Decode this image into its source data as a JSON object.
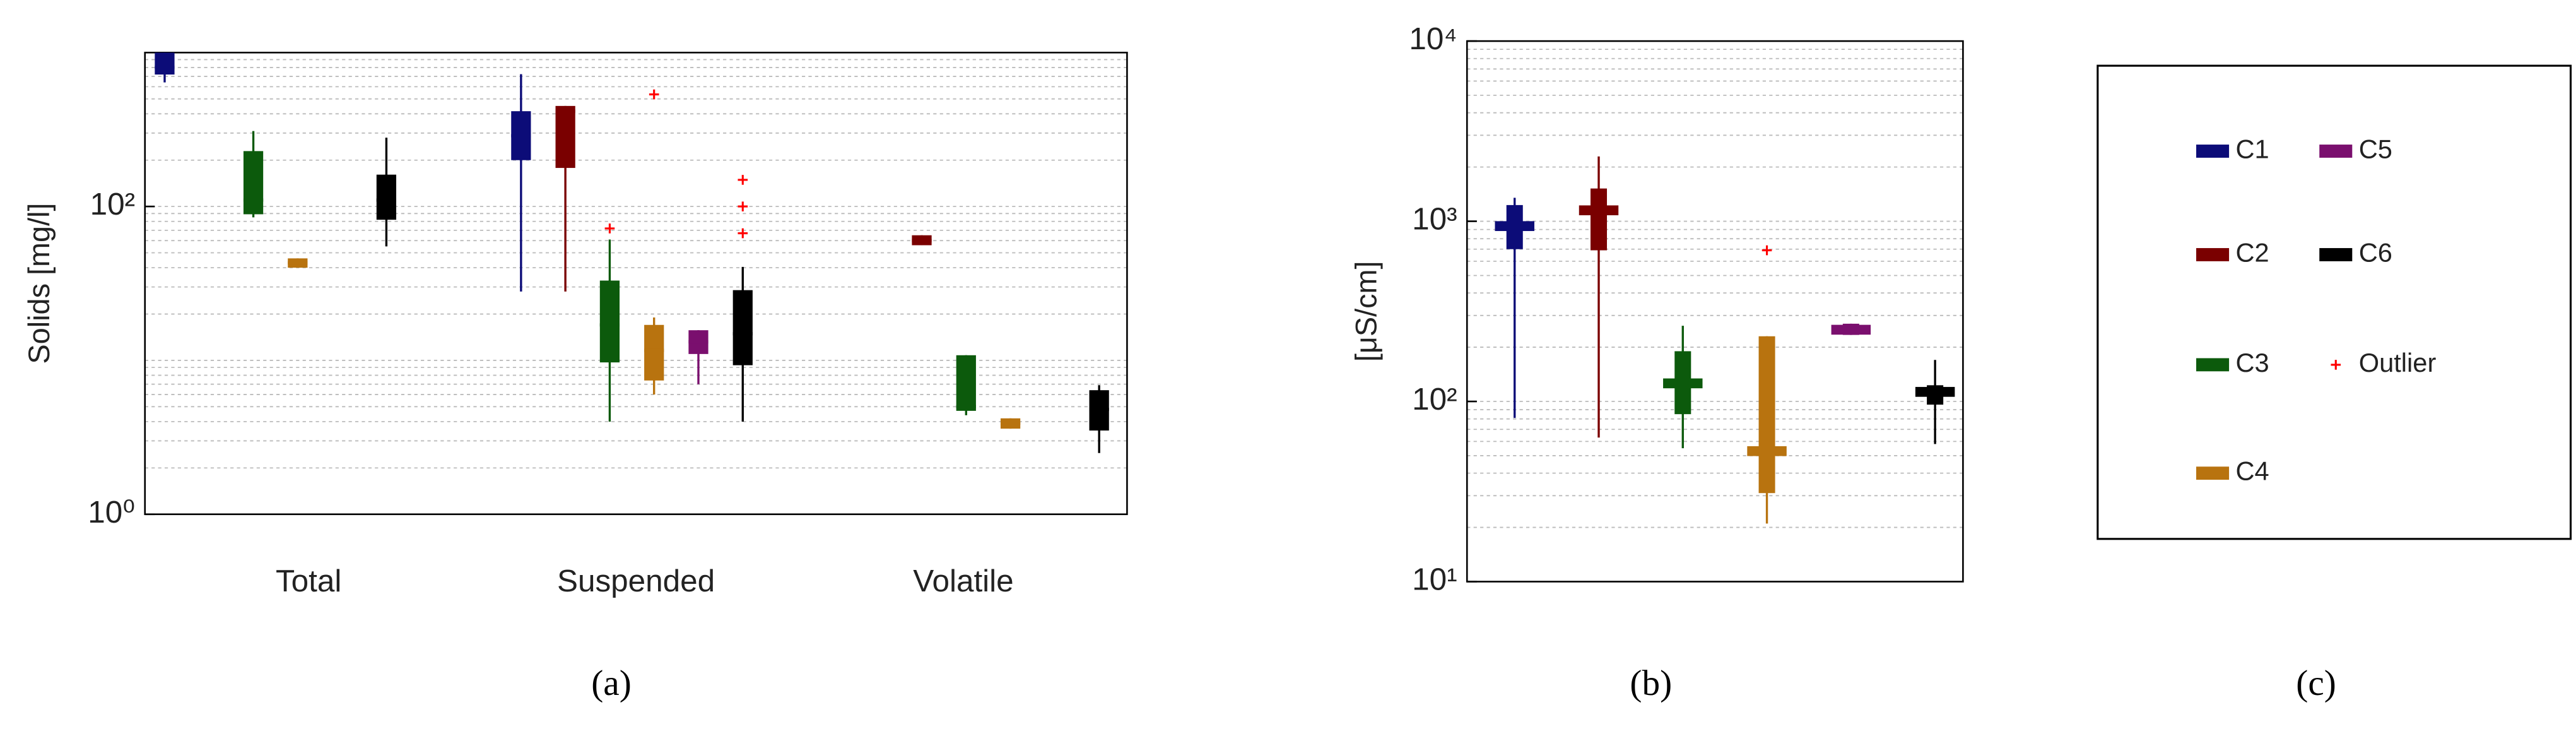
{
  "chart_data": [
    {
      "type": "box",
      "ylabel": "Solids [mg/l]",
      "log_scale": true,
      "grid": true,
      "caption": "(a)",
      "categories": [
        "Total",
        "Suspended",
        "Volatile"
      ],
      "ylim": [
        1,
        1000
      ],
      "yticks": [
        {
          "value": 1,
          "label": "10⁰"
        },
        {
          "value": 100,
          "label": "10²"
        }
      ],
      "outlier_color": "#ff0000",
      "outlier_label": "Outlier",
      "series": [
        {
          "name": "C1",
          "color": "#0c0c78",
          "min": [
            640,
            28,
            null
          ],
          "q1": [
            720,
            200,
            null
          ],
          "median": [
            800,
            288,
            null
          ],
          "q3": [
            1000,
            416,
            null
          ],
          "max": [
            1000,
            724,
            null
          ],
          "outliers": [
            [],
            [],
            []
          ]
        },
        {
          "name": "C2",
          "color": "#7a0000",
          "min": [
            null,
            28,
            56
          ],
          "q1": [
            null,
            178,
            56
          ],
          "median": [
            null,
            416,
            60
          ],
          "q3": [
            null,
            450,
            65
          ],
          "max": [
            null,
            450,
            65
          ],
          "outliers": [
            [],
            [],
            []
          ]
        },
        {
          "name": "C3",
          "color": "#0c5a0c",
          "min": [
            85,
            4,
            4.4
          ],
          "q1": [
            89,
            9.7,
            4.7
          ],
          "median": [
            110,
            17,
            5
          ],
          "q3": [
            229,
            33,
            10.8
          ],
          "max": [
            309,
            61,
            10.8
          ],
          "outliers": [
            [],
            [
              72
            ],
            []
          ]
        },
        {
          "name": "C4",
          "color": "#b8730f",
          "min": [
            40,
            6,
            3.6
          ],
          "q1": [
            40,
            7.4,
            3.6
          ],
          "median": [
            43,
            11.6,
            3.9
          ],
          "q3": [
            46,
            17,
            4.2
          ],
          "max": [
            46,
            19,
            4.2
          ],
          "outliers": [
            [],
            [
              535
            ],
            []
          ]
        },
        {
          "name": "C5",
          "color": "#7a0f6e",
          "min": [
            null,
            7,
            null
          ],
          "q1": [
            null,
            11,
            null
          ],
          "median": [
            null,
            13.2,
            null
          ],
          "q3": [
            null,
            15.7,
            null
          ],
          "max": [
            null,
            15.7,
            null
          ],
          "outliers": [
            [],
            [],
            []
          ]
        },
        {
          "name": "C6",
          "color": "#000000",
          "min": [
            55,
            4,
            2.5
          ],
          "q1": [
            82,
            9.3,
            3.5
          ],
          "median": [
            110,
            14.9,
            4.8
          ],
          "q3": [
            161,
            28.6,
            6.4
          ],
          "max": [
            280,
            40.5,
            6.9
          ],
          "outliers": [
            [],
            [
              149,
              100,
              67
            ],
            []
          ]
        }
      ]
    },
    {
      "type": "box",
      "ylabel": "[μS/cm]",
      "log_scale": true,
      "grid": true,
      "caption": "(b)",
      "ylim": [
        10,
        10000
      ],
      "yticks": [
        {
          "value": 10,
          "label": "10¹"
        },
        {
          "value": 100,
          "label": "10²"
        },
        {
          "value": 1000,
          "label": "10³"
        },
        {
          "value": 10000,
          "label": "10⁴"
        }
      ],
      "outlier_color": "#ff0000",
      "series": [
        {
          "color": "#0c0c78",
          "min": 81,
          "q1": 700,
          "median": 940,
          "q3": 1230,
          "max": 1350,
          "outliers": []
        },
        {
          "color": "#7a0000",
          "min": 63,
          "q1": 690,
          "median": 1150,
          "q3": 1520,
          "max": 2290,
          "outliers": []
        },
        {
          "color": "#0c5a0c",
          "min": 55,
          "q1": 85,
          "median": 126,
          "q3": 190,
          "max": 263,
          "outliers": []
        },
        {
          "color": "#b8730f",
          "min": 21,
          "q1": 31,
          "median": 53,
          "q3": 230,
          "max": 230,
          "outliers": [
            690
          ]
        },
        {
          "color": "#7a0f6e",
          "min": 234,
          "q1": 234,
          "median": 250,
          "q3": 270,
          "max": 270,
          "outliers": []
        },
        {
          "color": "#000000",
          "min": 58,
          "q1": 96,
          "median": 113,
          "q3": 123,
          "max": 170,
          "outliers": []
        }
      ]
    }
  ],
  "legend_panel": {
    "caption": "(c)"
  }
}
